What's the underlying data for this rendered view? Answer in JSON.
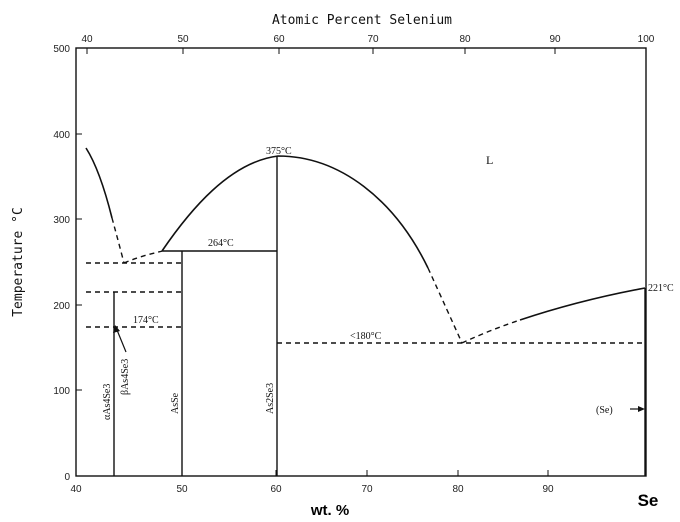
{
  "title_top": "Atomic Percent Selenium",
  "top_ticks": [
    "40",
    "50",
    "60",
    "70",
    "80",
    "90",
    "100"
  ],
  "bottom_ticks": [
    "40",
    "50",
    "60",
    "70",
    "80",
    "90"
  ],
  "left_ticks": [
    "500",
    "400",
    "300",
    "200",
    "100",
    "0"
  ],
  "ylabel": "Temperature °C",
  "xlabel": "wt. %",
  "se_label": "Se",
  "phase_L": "L",
  "temps": {
    "t375": "375°C",
    "t264": "264°C",
    "t221": "221°C",
    "t174": "174°C",
    "t180": "<180°C"
  },
  "compounds": {
    "alpha": "αAs4Se3",
    "beta": "βAs4Se3",
    "asse": "AsSe",
    "as2se3": "As2Se3",
    "se": "(Se)"
  }
}
